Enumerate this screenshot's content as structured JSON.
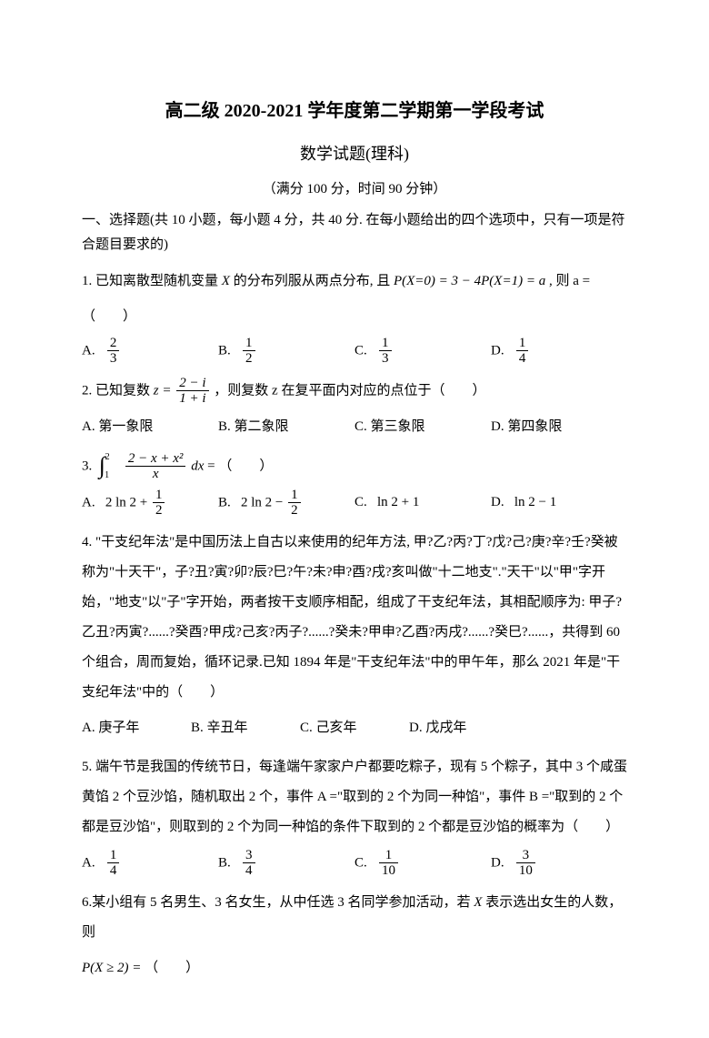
{
  "title": "高二级 2020-2021 学年度第二学期第一学段考试",
  "subtitle": "数学试题(理科)",
  "meta": "（满分 100 分，时间 90 分钟）",
  "section1": "一、选择题(共 10 小题，每小题 4 分，共 40 分. 在每小题给出的四个选项中，只有一项是符合题目要求的)",
  "q1": {
    "stem_pre": "1. 已知离散型随机变量",
    "var_X": " X ",
    "stem_mid": "的分布列服从两点分布, 且",
    "formula": "P(X=0) = 3 − 4P(X=1) = a",
    "stem_post": ", 则 a =",
    "blank": "（　　）",
    "opts": {
      "A": "A.",
      "B": "B.",
      "C": "C.",
      "D": "D."
    },
    "A_num": "2",
    "A_den": "3",
    "B_num": "1",
    "B_den": "2",
    "C_num": "1",
    "C_den": "3",
    "D_num": "1",
    "D_den": "4"
  },
  "q2": {
    "stem_pre": "2.  已知复数",
    "z_eq": "z =",
    "num": "2 − i",
    "den": "1 + i",
    "stem_post": "，则复数 z 在复平面内对应的点位于（　　）",
    "opts": {
      "A": "A.  第一象限",
      "B": "B.  第二象限",
      "C": "C.  第三象限",
      "D": "D.  第四象限"
    }
  },
  "q3": {
    "lead": "3.",
    "upper": "2",
    "lower": "1",
    "num": "2 − x + x²",
    "den": "x",
    "dx": "dx",
    "eq": " =  （　　）",
    "A_lbl": "A.",
    "A_main": "2 ln 2 +",
    "A_num": "1",
    "A_den": "2",
    "B_lbl": "B.",
    "B_main": "2 ln 2 −",
    "B_num": "1",
    "B_den": "2",
    "C_lbl": "C.",
    "C_val": "ln 2 + 1",
    "D_lbl": "D.",
    "D_val": "ln 2 − 1"
  },
  "q4": {
    "text": "4. \"干支纪年法\"是中国历法上自古以来使用的纪年方法, 甲?乙?丙?丁?戊?己?庚?辛?壬?癸被称为\"十天干\"，子?丑?寅?卯?辰?巳?午?未?申?酉?戌?亥叫做\"十二地支\".\"天干\"以\"甲\"字开始，\"地支\"以\"子\"字开始，两者按干支顺序相配，组成了干支纪年法，其相配顺序为: 甲子?乙丑?丙寅?......?癸酉?甲戌?己亥?丙子?......?癸未?甲申?乙酉?丙戌?......?癸巳?......，共得到 60 个组合，周而复始，循环记录.已知 1894 年是\"干支纪年法\"中的甲午年，那么 2021 年是\"干支纪年法\"中的（　　）",
    "opts": {
      "A": "A.  庚子年",
      "B": "B.  辛丑年",
      "C": "C.  己亥年",
      "D": "D.  戊戌年"
    }
  },
  "q5": {
    "text": "5.  端午节是我国的传统节日，每逢端午家家户户都要吃粽子，现有 5 个粽子，其中 3 个咸蛋黄馅 2 个豆沙馅，随机取出 2 个，事件 A =\"取到的 2 个为同一种馅\"，事件 B =\"取到的 2 个都是豆沙馅\"，则取到的 2 个为同一种馅的条件下取到的 2 个都是豆沙馅的概率为（　　）",
    "opts": {
      "A": "A.",
      "B": "B.",
      "C": "C.",
      "D": "D."
    },
    "A_num": "1",
    "A_den": "4",
    "B_num": "3",
    "B_den": "4",
    "C_num": "1",
    "C_den": "10",
    "D_num": "3",
    "D_den": "10"
  },
  "q6": {
    "text_pre": "6.某小组有 5 名男生、3 名女生，从中任选 3 名同学参加活动，若",
    "var_X": " X ",
    "text_post": "表示选出女生的人数，则",
    "formula": "P(X ≥ 2) = ",
    "blank": "（　　）"
  }
}
